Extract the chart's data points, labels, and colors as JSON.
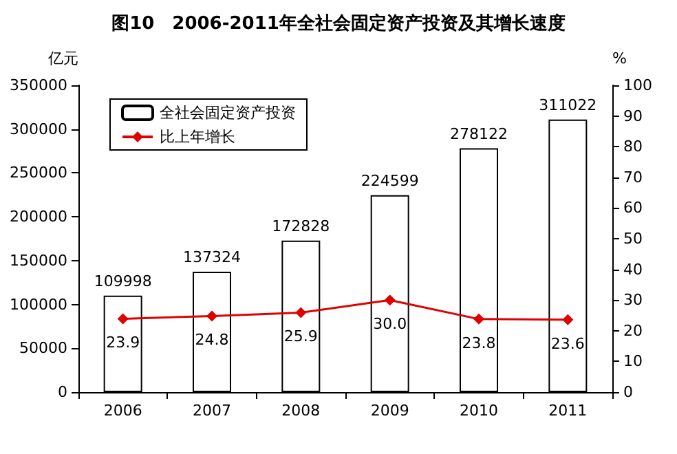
{
  "chart_data": {
    "type": "bar",
    "title": "图10　2006-2011年全社会固定资产投资及其增长速度",
    "ylabel": "亿元",
    "y2label": "%",
    "categories": [
      "2006",
      "2007",
      "2008",
      "2009",
      "2010",
      "2011"
    ],
    "series": [
      {
        "name": "全社会固定资产投资",
        "color": "#ffffff",
        "values": [
          109998,
          137324,
          172828,
          224599,
          278122,
          311022
        ]
      },
      {
        "name": "比上年增长",
        "type": "line",
        "axis": "y2",
        "color": "#e00000",
        "marker": "diamond",
        "values": [
          23.9,
          24.8,
          25.9,
          30.0,
          23.8,
          23.6
        ],
        "value_labels": [
          "23.9",
          "24.8",
          "25.9",
          "30.0",
          "23.8",
          "23.6"
        ]
      }
    ],
    "data_labels": true,
    "ylim": [
      0,
      350000
    ],
    "yticks": [
      0,
      50000,
      100000,
      150000,
      200000,
      250000,
      300000,
      350000
    ],
    "y2lim": [
      0,
      100
    ],
    "y2ticks": [
      0,
      10,
      20,
      30,
      40,
      50,
      60,
      70,
      80,
      90,
      100
    ],
    "grid": false,
    "legend": "top left"
  }
}
